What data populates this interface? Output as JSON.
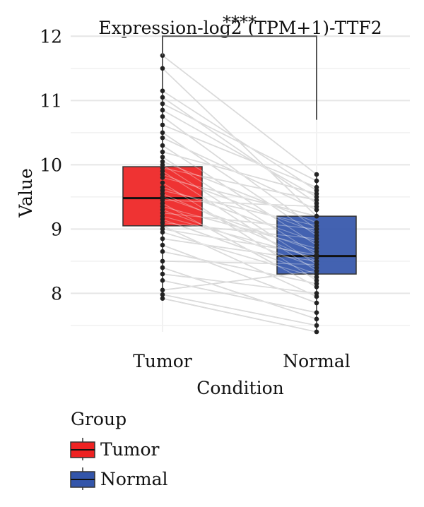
{
  "chart_data": {
    "type": "box",
    "title": "Expression-log2 (TPM+1)-TTF2",
    "xlabel": "Condition",
    "ylabel": "Value",
    "ylim": [
      7.4,
      12.3
    ],
    "yticks": [
      8,
      9,
      10,
      11,
      12
    ],
    "grid": true,
    "significance": "****",
    "categories": [
      "Tumor",
      "Normal"
    ],
    "boxes": [
      {
        "name": "Tumor",
        "q1": 9.05,
        "median": 9.48,
        "q3": 9.97,
        "whisker_low": 7.95,
        "whisker_high": 11.7,
        "color": "#ee2222"
      },
      {
        "name": "Normal",
        "q1": 8.3,
        "median": 8.58,
        "q3": 9.2,
        "whisker_low": 7.4,
        "whisker_high": 9.85,
        "color": "#3355aa"
      }
    ],
    "pairs": [
      [
        11.7,
        9.85
      ],
      [
        11.5,
        9.2
      ],
      [
        11.15,
        9.6
      ],
      [
        11.05,
        9.4
      ],
      [
        10.95,
        9.75
      ],
      [
        10.85,
        9.5
      ],
      [
        10.75,
        9.0
      ],
      [
        10.62,
        9.65
      ],
      [
        10.5,
        8.9
      ],
      [
        10.42,
        9.3
      ],
      [
        10.3,
        8.75
      ],
      [
        10.2,
        9.55
      ],
      [
        10.12,
        8.6
      ],
      [
        10.05,
        9.1
      ],
      [
        10.0,
        8.45
      ],
      [
        9.95,
        9.45
      ],
      [
        9.9,
        8.35
      ],
      [
        9.85,
        8.95
      ],
      [
        9.8,
        9.2
      ],
      [
        9.72,
        8.2
      ],
      [
        9.65,
        8.8
      ],
      [
        9.6,
        9.05
      ],
      [
        9.55,
        8.5
      ],
      [
        9.5,
        8.65
      ],
      [
        9.45,
        9.35
      ],
      [
        9.4,
        8.1
      ],
      [
        9.35,
        8.7
      ],
      [
        9.3,
        8.4
      ],
      [
        9.25,
        9.0
      ],
      [
        9.2,
        8.55
      ],
      [
        9.15,
        8.3
      ],
      [
        9.1,
        8.85
      ],
      [
        9.05,
        7.95
      ],
      [
        9.0,
        8.6
      ],
      [
        8.95,
        8.25
      ],
      [
        8.85,
        8.5
      ],
      [
        8.75,
        7.85
      ],
      [
        8.65,
        8.15
      ],
      [
        8.5,
        8.45
      ],
      [
        8.4,
        7.6
      ],
      [
        8.3,
        8.0
      ],
      [
        8.2,
        7.7
      ],
      [
        8.05,
        8.35
      ],
      [
        7.98,
        7.5
      ],
      [
        7.92,
        7.4
      ]
    ],
    "legend": {
      "title": "Group",
      "position": "bottom-left",
      "entries": [
        {
          "label": "Tumor",
          "color": "#ee2222"
        },
        {
          "label": "Normal",
          "color": "#3355aa"
        }
      ]
    }
  }
}
